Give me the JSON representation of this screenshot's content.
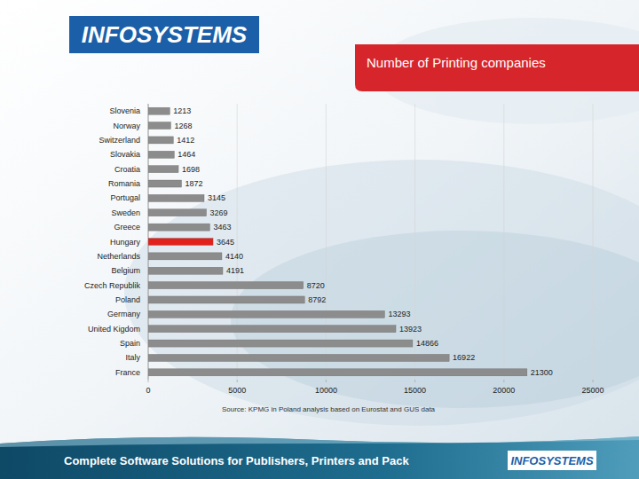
{
  "chart_data": {
    "type": "bar",
    "orientation": "horizontal",
    "title": "Number of Printing companies",
    "categories": [
      "Slovenia",
      "Norway",
      "Switzerland",
      "Slovakia",
      "Croatia",
      "Romania",
      "Portugal",
      "Sweden",
      "Greece",
      "Hungary",
      "Netherlands",
      "Belgium",
      "Czech Republik",
      "Poland",
      "Germany",
      "United Kigdom",
      "Spain",
      "Italy",
      "France"
    ],
    "values": [
      1213,
      1268,
      1412,
      1464,
      1698,
      1872,
      3145,
      3269,
      3463,
      3645,
      4140,
      4191,
      8720,
      8792,
      13293,
      13923,
      14866,
      16922,
      21300
    ],
    "colors": [
      "#8c8c8c",
      "#8c8c8c",
      "#8c8c8c",
      "#8c8c8c",
      "#8c8c8c",
      "#8c8c8c",
      "#8c8c8c",
      "#8c8c8c",
      "#8c8c8c",
      "#e3211c",
      "#8c8c8c",
      "#8c8c8c",
      "#8c8c8c",
      "#8c8c8c",
      "#8c8c8c",
      "#8c8c8c",
      "#8c8c8c",
      "#8c8c8c",
      "#8c8c8c"
    ],
    "xlim": [
      0,
      25000
    ],
    "xticks": [
      0,
      5000,
      10000,
      15000,
      20000,
      25000
    ],
    "grid": true,
    "data_labels": true,
    "source": "Source: KPMG in Poland analysis based on Eurostat and GUS data"
  },
  "page": {
    "logo": "INFOSYSTEMS",
    "footer_text": "Complete Software Solutions for Publishers, Printers and Pack",
    "footer_logo": "INFOSYSTEMS"
  }
}
